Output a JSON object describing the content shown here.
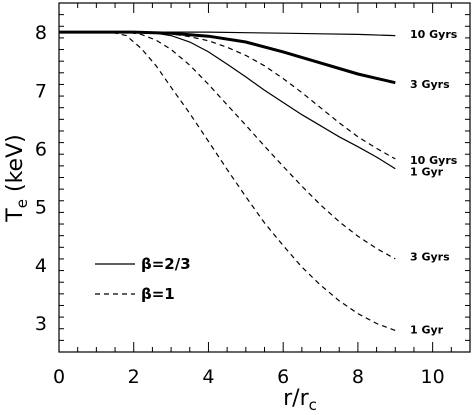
{
  "chart_data": {
    "type": "line",
    "xlim": [
      0,
      11
    ],
    "ylim": [
      2.5,
      8.5
    ],
    "x_ticks": [
      0,
      2,
      4,
      6,
      8,
      10
    ],
    "y_ticks": [
      3,
      4,
      5,
      6,
      7,
      8
    ],
    "xlabel": "r/r",
    "xlabel_sub": "c",
    "ylabel": "T",
    "ylabel_sub": "e",
    "ylabel_unit": " (keV)",
    "legend": {
      "placement": "lower-left",
      "entries": [
        {
          "label": "β=2/3",
          "style": "solid"
        },
        {
          "label": "β=1",
          "style": "dashed"
        }
      ]
    },
    "series": [
      {
        "label": "10 Gyrs",
        "style": "solid",
        "weight": "thin",
        "points": [
          [
            0,
            8.0
          ],
          [
            2,
            8.0
          ],
          [
            3,
            8.0
          ],
          [
            4,
            8.0
          ],
          [
            5,
            7.99
          ],
          [
            6,
            7.98
          ],
          [
            7,
            7.97
          ],
          [
            8,
            7.96
          ],
          [
            9,
            7.94
          ]
        ]
      },
      {
        "label": "3 Gyrs",
        "style": "solid",
        "weight": "thick",
        "points": [
          [
            0,
            8.0
          ],
          [
            2,
            8.0
          ],
          [
            3,
            7.98
          ],
          [
            4,
            7.93
          ],
          [
            5,
            7.83
          ],
          [
            6,
            7.66
          ],
          [
            7,
            7.47
          ],
          [
            8,
            7.28
          ],
          [
            9,
            7.13
          ]
        ]
      },
      {
        "label": "1 Gyr",
        "style": "solid",
        "weight": "thin",
        "points": [
          [
            0,
            8.0
          ],
          [
            2,
            8.0
          ],
          [
            2.5,
            7.99
          ],
          [
            3,
            7.94
          ],
          [
            3.5,
            7.83
          ],
          [
            4,
            7.66
          ],
          [
            4.5,
            7.45
          ],
          [
            5,
            7.23
          ],
          [
            5.5,
            7.0
          ],
          [
            6,
            6.79
          ],
          [
            6.5,
            6.58
          ],
          [
            7,
            6.39
          ],
          [
            7.5,
            6.2
          ],
          [
            8,
            6.03
          ],
          [
            8.5,
            5.85
          ],
          [
            9,
            5.65
          ]
        ]
      },
      {
        "label": "10 Gyrs",
        "style": "dashed",
        "weight": "thin",
        "points": [
          [
            0,
            8.0
          ],
          [
            2,
            8.0
          ],
          [
            3,
            7.97
          ],
          [
            3.5,
            7.92
          ],
          [
            4,
            7.85
          ],
          [
            4.5,
            7.74
          ],
          [
            5,
            7.6
          ],
          [
            5.5,
            7.42
          ],
          [
            6,
            7.2
          ],
          [
            6.5,
            6.96
          ],
          [
            7,
            6.7
          ],
          [
            7.5,
            6.44
          ],
          [
            8,
            6.2
          ],
          [
            8.5,
            6.0
          ],
          [
            9,
            5.82
          ]
        ]
      },
      {
        "label": "3 Gyrs",
        "style": "dashed",
        "weight": "thin",
        "points": [
          [
            0,
            8.0
          ],
          [
            1.8,
            8.0
          ],
          [
            2.2,
            7.96
          ],
          [
            2.6,
            7.86
          ],
          [
            3,
            7.7
          ],
          [
            3.5,
            7.43
          ],
          [
            4,
            7.1
          ],
          [
            4.5,
            6.75
          ],
          [
            5,
            6.4
          ],
          [
            5.5,
            6.04
          ],
          [
            6,
            5.69
          ],
          [
            6.5,
            5.35
          ],
          [
            7,
            5.03
          ],
          [
            7.5,
            4.74
          ],
          [
            8,
            4.49
          ],
          [
            8.5,
            4.28
          ],
          [
            9,
            4.1
          ]
        ]
      },
      {
        "label": "1 Gyr",
        "style": "dashed",
        "weight": "thin",
        "points": [
          [
            0,
            8.0
          ],
          [
            1.4,
            8.0
          ],
          [
            1.8,
            7.94
          ],
          [
            2.2,
            7.72
          ],
          [
            2.6,
            7.42
          ],
          [
            3,
            7.05
          ],
          [
            3.5,
            6.6
          ],
          [
            4,
            6.12
          ],
          [
            4.5,
            5.64
          ],
          [
            5,
            5.17
          ],
          [
            5.5,
            4.72
          ],
          [
            6,
            4.33
          ],
          [
            6.5,
            3.96
          ],
          [
            7,
            3.65
          ],
          [
            7.5,
            3.38
          ],
          [
            8,
            3.16
          ],
          [
            8.5,
            2.99
          ],
          [
            9,
            2.87
          ]
        ]
      }
    ],
    "curve_labels": [
      {
        "text": "10 Gyrs",
        "y": 7.97
      },
      {
        "text": "3 Gyrs",
        "y": 7.11
      },
      {
        "text": "10 Gyrs",
        "y": 5.8
      },
      {
        "text": "1 Gyr",
        "y": 5.6
      },
      {
        "text": "3 Gyrs",
        "y": 4.14
      },
      {
        "text": "1 Gyr",
        "y": 2.89
      }
    ]
  }
}
